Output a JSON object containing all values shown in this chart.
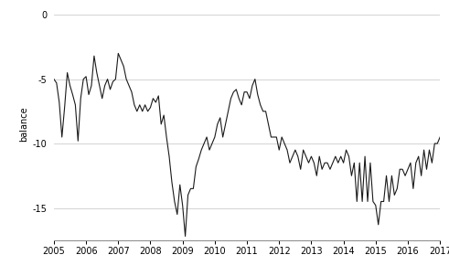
{
  "title": "",
  "ylabel": "balance",
  "xlim_start": 2005.0,
  "xlim_end": 2017.0,
  "ylim_bottom": -17.5,
  "ylim_top": 0.5,
  "yticks": [
    0,
    -5,
    -10,
    -15
  ],
  "xticks": [
    2005,
    2006,
    2007,
    2008,
    2009,
    2010,
    2011,
    2012,
    2013,
    2014,
    2015,
    2016,
    2017
  ],
  "line_color": "#1a1a1a",
  "line_width": 0.8,
  "background_color": "#ffffff",
  "grid_color": "#cccccc",
  "tick_fontsize": 7,
  "ylabel_fontsize": 7,
  "data": [
    [
      2005.0,
      -5.0
    ],
    [
      2005.083,
      -5.3
    ],
    [
      2005.167,
      -6.8
    ],
    [
      2005.25,
      -9.5
    ],
    [
      2005.333,
      -7.2
    ],
    [
      2005.417,
      -4.5
    ],
    [
      2005.5,
      -5.5
    ],
    [
      2005.583,
      -6.2
    ],
    [
      2005.667,
      -7.0
    ],
    [
      2005.75,
      -9.8
    ],
    [
      2005.833,
      -6.5
    ],
    [
      2005.917,
      -5.0
    ],
    [
      2006.0,
      -4.8
    ],
    [
      2006.083,
      -6.2
    ],
    [
      2006.167,
      -5.5
    ],
    [
      2006.25,
      -3.2
    ],
    [
      2006.333,
      -4.5
    ],
    [
      2006.417,
      -5.5
    ],
    [
      2006.5,
      -6.5
    ],
    [
      2006.583,
      -5.5
    ],
    [
      2006.667,
      -5.0
    ],
    [
      2006.75,
      -5.8
    ],
    [
      2006.833,
      -5.2
    ],
    [
      2006.917,
      -5.0
    ],
    [
      2007.0,
      -3.0
    ],
    [
      2007.083,
      -3.5
    ],
    [
      2007.167,
      -4.0
    ],
    [
      2007.25,
      -5.0
    ],
    [
      2007.333,
      -5.5
    ],
    [
      2007.417,
      -6.0
    ],
    [
      2007.5,
      -7.0
    ],
    [
      2007.583,
      -7.5
    ],
    [
      2007.667,
      -7.0
    ],
    [
      2007.75,
      -7.5
    ],
    [
      2007.833,
      -7.0
    ],
    [
      2007.917,
      -7.5
    ],
    [
      2008.0,
      -7.2
    ],
    [
      2008.083,
      -6.5
    ],
    [
      2008.167,
      -6.8
    ],
    [
      2008.25,
      -6.3
    ],
    [
      2008.333,
      -8.5
    ],
    [
      2008.417,
      -7.8
    ],
    [
      2008.5,
      -9.5
    ],
    [
      2008.583,
      -11.0
    ],
    [
      2008.667,
      -13.0
    ],
    [
      2008.75,
      -14.5
    ],
    [
      2008.833,
      -15.5
    ],
    [
      2008.917,
      -13.2
    ],
    [
      2009.0,
      -14.8
    ],
    [
      2009.083,
      -17.2
    ],
    [
      2009.167,
      -14.0
    ],
    [
      2009.25,
      -13.5
    ],
    [
      2009.333,
      -13.5
    ],
    [
      2009.417,
      -11.8
    ],
    [
      2009.5,
      -11.2
    ],
    [
      2009.583,
      -10.5
    ],
    [
      2009.667,
      -10.0
    ],
    [
      2009.75,
      -9.5
    ],
    [
      2009.833,
      -10.5
    ],
    [
      2009.917,
      -10.0
    ],
    [
      2010.0,
      -9.5
    ],
    [
      2010.083,
      -8.5
    ],
    [
      2010.167,
      -8.0
    ],
    [
      2010.25,
      -9.5
    ],
    [
      2010.333,
      -8.5
    ],
    [
      2010.417,
      -7.5
    ],
    [
      2010.5,
      -6.5
    ],
    [
      2010.583,
      -6.0
    ],
    [
      2010.667,
      -5.8
    ],
    [
      2010.75,
      -6.5
    ],
    [
      2010.833,
      -7.0
    ],
    [
      2010.917,
      -6.0
    ],
    [
      2011.0,
      -6.0
    ],
    [
      2011.083,
      -6.5
    ],
    [
      2011.167,
      -5.5
    ],
    [
      2011.25,
      -5.0
    ],
    [
      2011.333,
      -6.2
    ],
    [
      2011.417,
      -7.0
    ],
    [
      2011.5,
      -7.5
    ],
    [
      2011.583,
      -7.5
    ],
    [
      2011.667,
      -8.5
    ],
    [
      2011.75,
      -9.5
    ],
    [
      2011.833,
      -9.5
    ],
    [
      2011.917,
      -9.5
    ],
    [
      2012.0,
      -10.5
    ],
    [
      2012.083,
      -9.5
    ],
    [
      2012.167,
      -10.0
    ],
    [
      2012.25,
      -10.5
    ],
    [
      2012.333,
      -11.5
    ],
    [
      2012.417,
      -11.0
    ],
    [
      2012.5,
      -10.5
    ],
    [
      2012.583,
      -11.0
    ],
    [
      2012.667,
      -12.0
    ],
    [
      2012.75,
      -10.5
    ],
    [
      2012.833,
      -11.0
    ],
    [
      2012.917,
      -11.5
    ],
    [
      2013.0,
      -11.0
    ],
    [
      2013.083,
      -11.5
    ],
    [
      2013.167,
      -12.5
    ],
    [
      2013.25,
      -11.0
    ],
    [
      2013.333,
      -12.0
    ],
    [
      2013.417,
      -11.5
    ],
    [
      2013.5,
      -11.5
    ],
    [
      2013.583,
      -12.0
    ],
    [
      2013.667,
      -11.5
    ],
    [
      2013.75,
      -11.0
    ],
    [
      2013.833,
      -11.5
    ],
    [
      2013.917,
      -11.0
    ],
    [
      2014.0,
      -11.5
    ],
    [
      2014.083,
      -10.5
    ],
    [
      2014.167,
      -11.0
    ],
    [
      2014.25,
      -12.5
    ],
    [
      2014.333,
      -11.5
    ],
    [
      2014.417,
      -14.5
    ],
    [
      2014.5,
      -11.5
    ],
    [
      2014.583,
      -14.5
    ],
    [
      2014.667,
      -11.0
    ],
    [
      2014.75,
      -14.5
    ],
    [
      2014.833,
      -11.5
    ],
    [
      2014.917,
      -14.5
    ],
    [
      2015.0,
      -14.8
    ],
    [
      2015.083,
      -16.3
    ],
    [
      2015.167,
      -14.5
    ],
    [
      2015.25,
      -14.5
    ],
    [
      2015.333,
      -12.5
    ],
    [
      2015.417,
      -14.5
    ],
    [
      2015.5,
      -12.5
    ],
    [
      2015.583,
      -14.0
    ],
    [
      2015.667,
      -13.5
    ],
    [
      2015.75,
      -12.0
    ],
    [
      2015.833,
      -12.0
    ],
    [
      2015.917,
      -12.5
    ],
    [
      2016.0,
      -12.0
    ],
    [
      2016.083,
      -11.5
    ],
    [
      2016.167,
      -13.5
    ],
    [
      2016.25,
      -11.5
    ],
    [
      2016.333,
      -11.0
    ],
    [
      2016.417,
      -12.5
    ],
    [
      2016.5,
      -10.5
    ],
    [
      2016.583,
      -12.0
    ],
    [
      2016.667,
      -10.5
    ],
    [
      2016.75,
      -11.5
    ],
    [
      2016.833,
      -10.0
    ],
    [
      2016.917,
      -10.0
    ],
    [
      2017.0,
      -9.5
    ]
  ]
}
